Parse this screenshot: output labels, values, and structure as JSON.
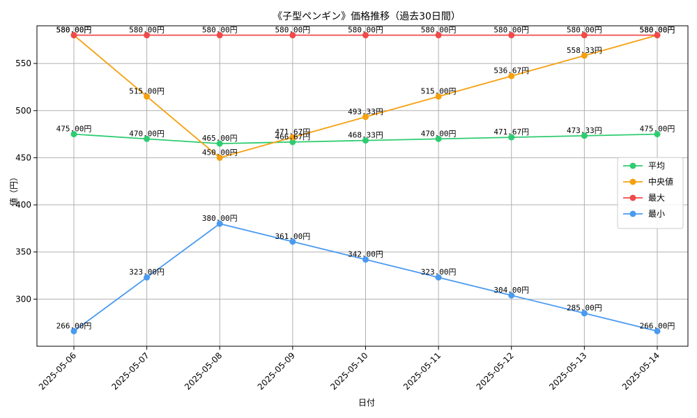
{
  "chart_data": {
    "type": "line",
    "title": "《子型ペンギン》価格推移（過去30日間）",
    "xlabel": "日付",
    "ylabel": "値（円）",
    "categories": [
      "2025-05-06",
      "2025-05-07",
      "2025-05-08",
      "2025-05-09",
      "2025-05-10",
      "2025-05-11",
      "2025-05-12",
      "2025-05-13",
      "2025-05-14"
    ],
    "ylim": [
      250,
      590
    ],
    "yticks": [
      300,
      350,
      400,
      450,
      500,
      550
    ],
    "grid": true,
    "legend_position": "center-right",
    "series": [
      {
        "name": "平均",
        "color": "#2ecc71",
        "values": [
          475.0,
          470.0,
          465.0,
          466.67,
          468.33,
          470.0,
          471.67,
          473.33,
          475.0
        ],
        "labels": [
          "475.00円",
          "470.00円",
          "465.00円",
          "466.67円",
          "468.33円",
          "470.00円",
          "471.67円",
          "473.33円",
          "475.00円"
        ]
      },
      {
        "name": "中央値",
        "color": "#f5a00f",
        "values": [
          580.0,
          515.0,
          450.0,
          471.67,
          493.33,
          515.0,
          536.67,
          558.33,
          580.0
        ],
        "labels": [
          "580.00円",
          "515.00円",
          "450.00円",
          "471.67円",
          "493.33円",
          "515.00円",
          "536.67円",
          "558.33円",
          "580.00円"
        ]
      },
      {
        "name": "最大",
        "color": "#f04a4a",
        "values": [
          580.0,
          580.0,
          580.0,
          580.0,
          580.0,
          580.0,
          580.0,
          580.0,
          580.0
        ],
        "labels": [
          "580.00円",
          "580.00円",
          "580.00円",
          "580.00円",
          "580.00円",
          "580.00円",
          "580.00円",
          "580.00円",
          "580.00円"
        ]
      },
      {
        "name": "最小",
        "color": "#4a9af0",
        "values": [
          266.0,
          323.0,
          380.0,
          361.0,
          342.0,
          323.0,
          304.0,
          285.0,
          266.0
        ],
        "labels": [
          "266.00円",
          "323.00円",
          "380.00円",
          "361.00円",
          "342.00円",
          "323.00円",
          "304.00円",
          "285.00円",
          "266.00円"
        ]
      }
    ]
  }
}
